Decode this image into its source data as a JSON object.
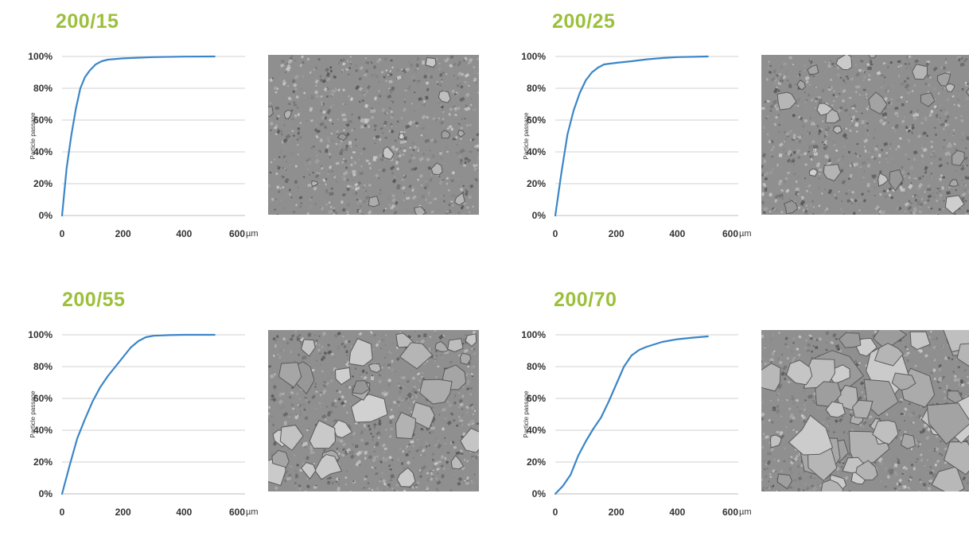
{
  "chart_data": [
    {
      "type": "line",
      "title": "200/15",
      "ylabel": "Particle passage",
      "xlabel": "µm",
      "xlim": [
        0,
        600
      ],
      "ylim": [
        0,
        100
      ],
      "x_ticks": [
        "0",
        "200",
        "400",
        "600"
      ],
      "y_ticks": [
        "0%",
        "20%",
        "40%",
        "60%",
        "80%",
        "100%"
      ],
      "grid": true,
      "series": [
        {
          "color": "#3a86c8",
          "x": [
            0,
            15,
            30,
            45,
            60,
            75,
            90,
            110,
            130,
            150,
            200,
            300,
            400,
            500
          ],
          "y": [
            0,
            30,
            50,
            67,
            80,
            87,
            91,
            95,
            97,
            98,
            98.8,
            99.6,
            99.9,
            100
          ]
        }
      ]
    },
    {
      "type": "line",
      "title": "200/25",
      "ylabel": "Particle passage",
      "xlabel": "µm",
      "xlim": [
        0,
        600
      ],
      "ylim": [
        0,
        100
      ],
      "x_ticks": [
        "0",
        "200",
        "400",
        "600"
      ],
      "y_ticks": [
        "0%",
        "20%",
        "40%",
        "60%",
        "80%",
        "100%"
      ],
      "grid": true,
      "series": [
        {
          "color": "#3a86c8",
          "x": [
            0,
            20,
            40,
            60,
            80,
            100,
            120,
            140,
            160,
            200,
            250,
            300,
            350,
            400,
            500
          ],
          "y": [
            0,
            27,
            51,
            66,
            77,
            85,
            90,
            93,
            95,
            96,
            97,
            98.2,
            99,
            99.6,
            100
          ]
        }
      ]
    },
    {
      "type": "line",
      "title": "200/55",
      "ylabel": "Particle passage",
      "xlabel": "µm",
      "xlim": [
        0,
        600
      ],
      "ylim": [
        0,
        100
      ],
      "x_ticks": [
        "0",
        "200",
        "400",
        "600"
      ],
      "y_ticks": [
        "0%",
        "20%",
        "40%",
        "60%",
        "80%",
        "100%"
      ],
      "grid": true,
      "series": [
        {
          "color": "#3a86c8",
          "x": [
            0,
            25,
            50,
            75,
            100,
            125,
            150,
            175,
            200,
            225,
            250,
            275,
            300,
            350,
            400,
            500
          ],
          "y": [
            0,
            18,
            35,
            47,
            58,
            67,
            74,
            80,
            86,
            92,
            96,
            98.5,
            99.4,
            99.8,
            100,
            100
          ]
        }
      ]
    },
    {
      "type": "line",
      "title": "200/70",
      "ylabel": "Particle passage",
      "xlabel": "µm",
      "xlim": [
        0,
        600
      ],
      "ylim": [
        0,
        100
      ],
      "x_ticks": [
        "0",
        "200",
        "400",
        "600"
      ],
      "y_ticks": [
        "0%",
        "20%",
        "40%",
        "60%",
        "80%",
        "100%"
      ],
      "grid": true,
      "series": [
        {
          "color": "#3a86c8",
          "x": [
            0,
            25,
            50,
            75,
            100,
            125,
            150,
            175,
            200,
            225,
            250,
            275,
            300,
            350,
            400,
            450,
            500
          ],
          "y": [
            0,
            5,
            12,
            24,
            33,
            41,
            48,
            58,
            69,
            80,
            87,
            90.5,
            92.5,
            95.5,
            97.2,
            98.2,
            99
          ]
        }
      ]
    }
  ],
  "images": [
    {
      "icon": "sem-micrograph-fine",
      "density": 1.0
    },
    {
      "icon": "sem-micrograph-fine-medium",
      "density": 1.6
    },
    {
      "icon": "sem-micrograph-medium",
      "density": 2.4
    },
    {
      "icon": "sem-micrograph-coarse",
      "density": 3.4
    }
  ]
}
